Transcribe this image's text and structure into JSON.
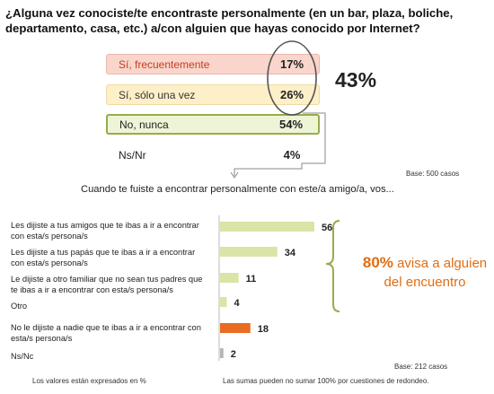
{
  "question1": {
    "text": "¿Alguna vez conociste/te encontraste personalmente (en un bar, plaza, boliche, departamento, casa, etc.) a/con alguien que hayas conocido por Internet?",
    "options": [
      {
        "label": "Sí, frecuentemente",
        "value": "17%"
      },
      {
        "label": "Sí, sólo una vez",
        "value": "26%"
      },
      {
        "label": "No, nunca",
        "value": "54%"
      },
      {
        "label": "Ns/Nr",
        "value": "4%"
      }
    ],
    "sum_label": "43%",
    "base": "Base: 500 casos"
  },
  "question2": {
    "text": "Cuando te fuiste a encontrar personalmente con este/a amigo/a, vos...",
    "base": "Base: 212 casos",
    "callout": {
      "percent": "80%",
      "text_after": "avisa a alguien",
      "line2": "del encuentro"
    }
  },
  "chart_data": {
    "type": "bar",
    "orientation": "horizontal",
    "categories": [
      "Les dijiste a tus amigos que te ibas a ir a encontrar con esta/s persona/s",
      "Les dijiste a tus papás que te ibas a ir a encontrar con esta/s persona/s",
      "Le dijiste a otro familiar que no sean tus padres que te ibas a ir a encontrar con esta/s persona/s",
      "Otro",
      "No le dijiste a nadie que te ibas a ir a encontrar con esta/s persona/s",
      "Ns/Nc"
    ],
    "values": [
      56,
      34,
      11,
      4,
      18,
      2
    ],
    "colors": [
      "#d9e4a6",
      "#d9e4a6",
      "#d9e4a6",
      "#d9e4a6",
      "#ea6b22",
      "#b5b5b5"
    ],
    "title": "",
    "xlabel": "",
    "ylabel": ""
  },
  "footer": {
    "left": "Los valores están expresados en %",
    "right": "Las sumas pueden no sumar 100% por cuestiones de redondeo."
  },
  "colors": {
    "accent_orange": "#e06d13",
    "highlight_green": "#97ac4b"
  }
}
